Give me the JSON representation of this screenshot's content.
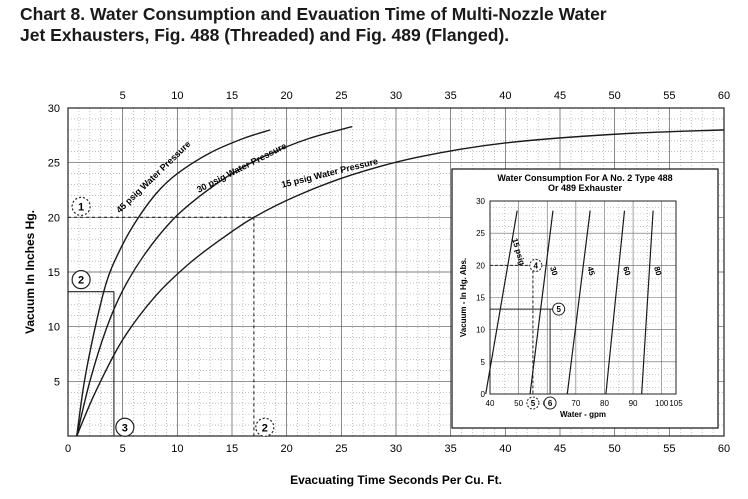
{
  "title": "Chart 8.  Water Consumption and Evauation Time of Multi-Nozzle Water Jet Exhausters, Fig. 488 (Threaded) and Fig. 489 (Flanged).",
  "chart_data": {
    "type": "line",
    "title": "Chart 8.  Water Consumption and Evauation Time of Multi-Nozzle Water Jet Exhausters, Fig. 488 (Threaded) and Fig. 489 (Flanged).",
    "xlabel": "Evacuating Time Seconds Per Cu. Ft.",
    "ylabel": "Vacuum In Inches Hg.",
    "xlim": [
      0,
      60
    ],
    "ylim": [
      0,
      30
    ],
    "x_ticks": [
      "5",
      "10",
      "15",
      "20",
      "25",
      "30",
      "35",
      "40",
      "45",
      "50",
      "55",
      "60"
    ],
    "y_ticks": [
      "5",
      "10",
      "15",
      "20",
      "25",
      "30"
    ],
    "grid": true,
    "series": [
      {
        "name": "45 psig Water Pressure",
        "x": [
          0.8,
          1.5,
          2.5,
          3.5,
          4.5,
          6,
          8,
          10,
          13,
          16,
          18.5
        ],
        "y": [
          0,
          5,
          10,
          14,
          16.5,
          19.3,
          22.1,
          24,
          25.9,
          27.2,
          28
        ]
      },
      {
        "name": "30 psig Water Pressure",
        "x": [
          0.8,
          2,
          3.5,
          5,
          7,
          9.5,
          12,
          15,
          18,
          22,
          26
        ],
        "y": [
          0,
          5,
          9.8,
          13.3,
          16.6,
          19.7,
          21.9,
          24,
          25.6,
          27.2,
          28.3
        ]
      },
      {
        "name": "15 psig Water Pressure",
        "x": [
          0.8,
          2.5,
          5,
          8,
          11,
          14,
          17,
          21,
          26,
          32,
          40,
          50,
          60
        ],
        "y": [
          0,
          4,
          8.8,
          12.8,
          15.7,
          18,
          20,
          22,
          23.9,
          25.5,
          26.8,
          27.6,
          28
        ]
      }
    ],
    "annotations": [
      {
        "label": "1",
        "x": 1.2,
        "y": 21,
        "style": "dashed circle",
        "guide_y": 20,
        "guide_to_x": 17
      },
      {
        "label": "2",
        "x": 1.2,
        "y": 14.3,
        "style": "solid circle",
        "guide_y": 13.2,
        "guide_to_x": 4.2
      },
      {
        "label": "3",
        "x": 5.2,
        "y": 0.8,
        "style": "solid circle",
        "guide_x": 4.2
      },
      {
        "label": "2",
        "x": 18,
        "y": 0.8,
        "style": "dashed circle",
        "guide_x": 17
      }
    ],
    "inset": {
      "title_line1": "Water Consumption For A No. 2 Type 488",
      "title_line2": "Or 489 Exhauster",
      "xlabel": "Water - gpm",
      "ylabel": "Vacuum - In Hg. Abs.",
      "xlim": [
        40,
        105
      ],
      "ylim": [
        0,
        30
      ],
      "x_ticks": [
        "40",
        "50",
        "5",
        "60",
        "6",
        "70",
        "80",
        "90",
        "100",
        "105"
      ],
      "y_ticks": [
        "0",
        "5",
        "10",
        "15",
        "20",
        "25",
        "30"
      ],
      "lines": [
        {
          "name": "15 psig",
          "x": [
            38.5,
            49.5
          ],
          "y": [
            0,
            28.5
          ]
        },
        {
          "name": "30",
          "x": [
            54,
            62
          ],
          "y": [
            0,
            28.5
          ]
        },
        {
          "name": "45",
          "x": [
            67,
            75
          ],
          "y": [
            0,
            28.5
          ]
        },
        {
          "name": "60",
          "x": [
            80.5,
            87
          ],
          "y": [
            0,
            28.5
          ]
        },
        {
          "name": "80",
          "x": [
            93,
            97
          ],
          "y": [
            0,
            28.5
          ]
        }
      ],
      "annotations": [
        {
          "label": "4",
          "x": 56,
          "y": 20,
          "style": "dashed circle",
          "guide_y": 20,
          "guide_x": 55
        },
        {
          "label": "5",
          "x": 64,
          "y": 13.2,
          "style": "solid circle",
          "guide_y": 13.2,
          "guide_x": 61
        },
        {
          "label": "5",
          "x": 55,
          "y": -1,
          "style": "dashed circle"
        },
        {
          "label": "6",
          "x": 61,
          "y": -1,
          "style": "solid circle"
        }
      ]
    }
  }
}
